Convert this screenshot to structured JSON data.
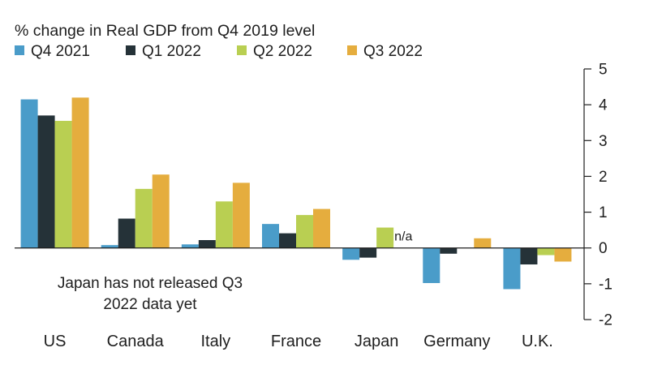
{
  "chart_data": {
    "type": "bar",
    "title": "% change in Real GDP from Q4 2019 level",
    "categories": [
      "US",
      "Canada",
      "Italy",
      "France",
      "Japan",
      "Germany",
      "U.K."
    ],
    "series": [
      {
        "name": "Q4 2021",
        "color": "#4a9cc9",
        "values": [
          4.15,
          0.08,
          0.1,
          0.67,
          -0.33,
          -0.98,
          -1.15
        ]
      },
      {
        "name": "Q1 2022",
        "color": "#253238",
        "values": [
          3.7,
          0.82,
          0.22,
          0.41,
          -0.27,
          -0.16,
          -0.46
        ]
      },
      {
        "name": "Q2 2022",
        "color": "#b9cf52",
        "values": [
          3.55,
          1.65,
          1.3,
          0.92,
          0.57,
          0.0,
          -0.2
        ]
      },
      {
        "name": "Q3 2022",
        "color": "#e5ad3e",
        "values": [
          4.2,
          2.05,
          1.82,
          1.09,
          null,
          0.27,
          -0.38
        ]
      }
    ],
    "y_ticks": [
      "5",
      "4",
      "3",
      "2",
      "1",
      "0",
      "-1",
      "-2"
    ],
    "ylim": [
      -2,
      5
    ],
    "y_axis_side": "right",
    "legend_position": "top-left",
    "grid": false,
    "annotations": {
      "na_label": "n/a",
      "note_line1": "Japan has not released Q3",
      "note_line2": "2022 data yet"
    }
  }
}
